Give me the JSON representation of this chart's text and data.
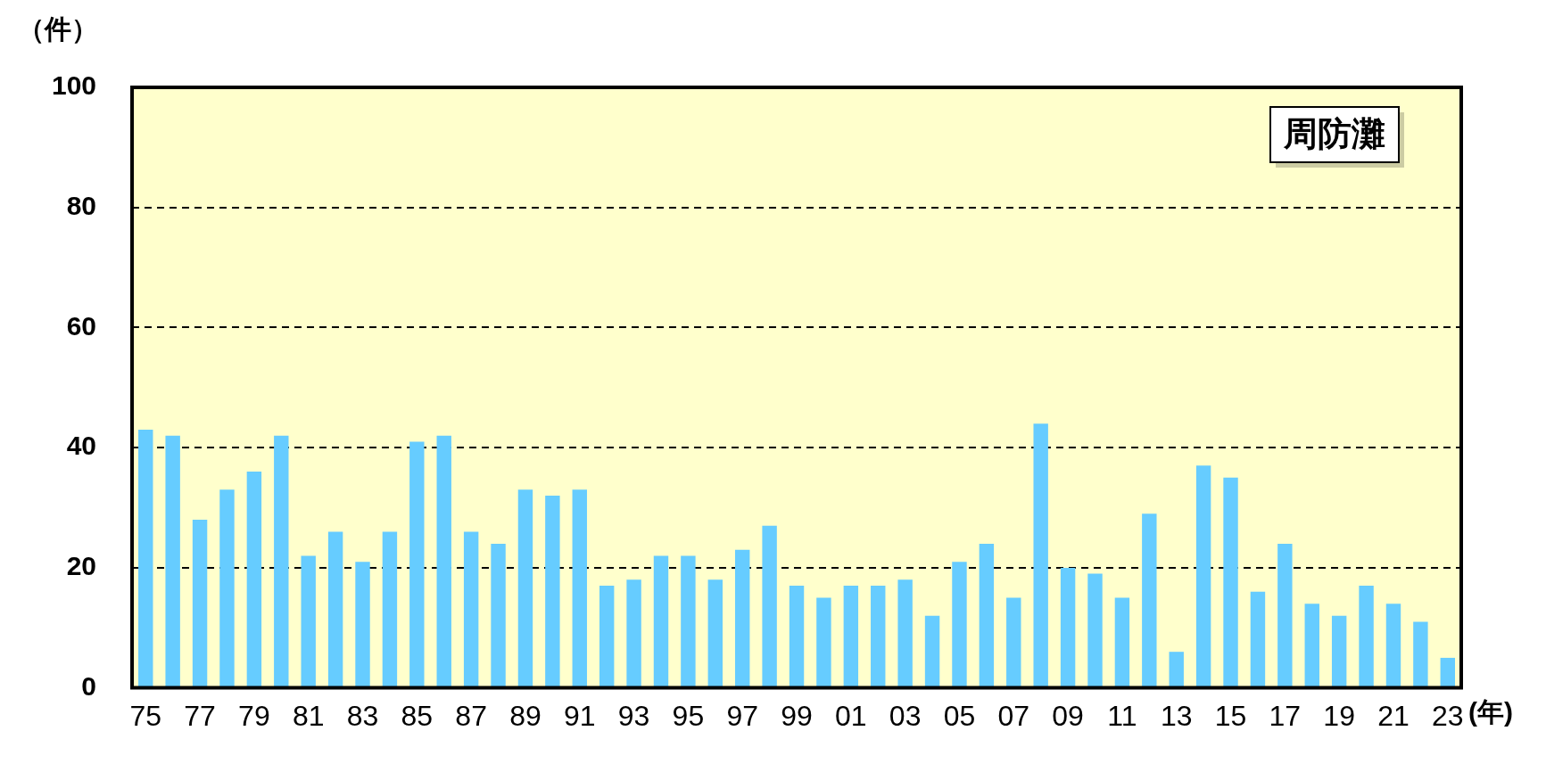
{
  "chart_data": {
    "type": "bar",
    "ylabel": "（件）",
    "xlabel": "(年)",
    "annotations": [
      "周防灘"
    ],
    "categories": [
      "75",
      null,
      "77",
      null,
      "79",
      null,
      "81",
      null,
      "83",
      null,
      "85",
      null,
      "87",
      null,
      "89",
      null,
      "91",
      null,
      "93",
      null,
      "95",
      null,
      "97",
      null,
      "99",
      null,
      "01",
      null,
      "03",
      null,
      "05",
      null,
      "07",
      null,
      "09",
      null,
      "11",
      null,
      "13",
      null,
      "15",
      null,
      "17",
      null,
      "19",
      null,
      "21",
      null,
      "23"
    ],
    "values": [
      43,
      42,
      28,
      33,
      36,
      42,
      22,
      26,
      21,
      26,
      41,
      42,
      26,
      24,
      33,
      32,
      33,
      17,
      18,
      22,
      22,
      18,
      23,
      27,
      17,
      15,
      17,
      17,
      18,
      12,
      21,
      24,
      15,
      44,
      20,
      19,
      15,
      29,
      6,
      37,
      35,
      16,
      24,
      14,
      12,
      17,
      14,
      11,
      5
    ],
    "color": "#66ccff",
    "ylim": [
      0,
      100
    ],
    "yticks": [
      0,
      20,
      40,
      60,
      80,
      100
    ],
    "grid": "y",
    "legend": false
  }
}
